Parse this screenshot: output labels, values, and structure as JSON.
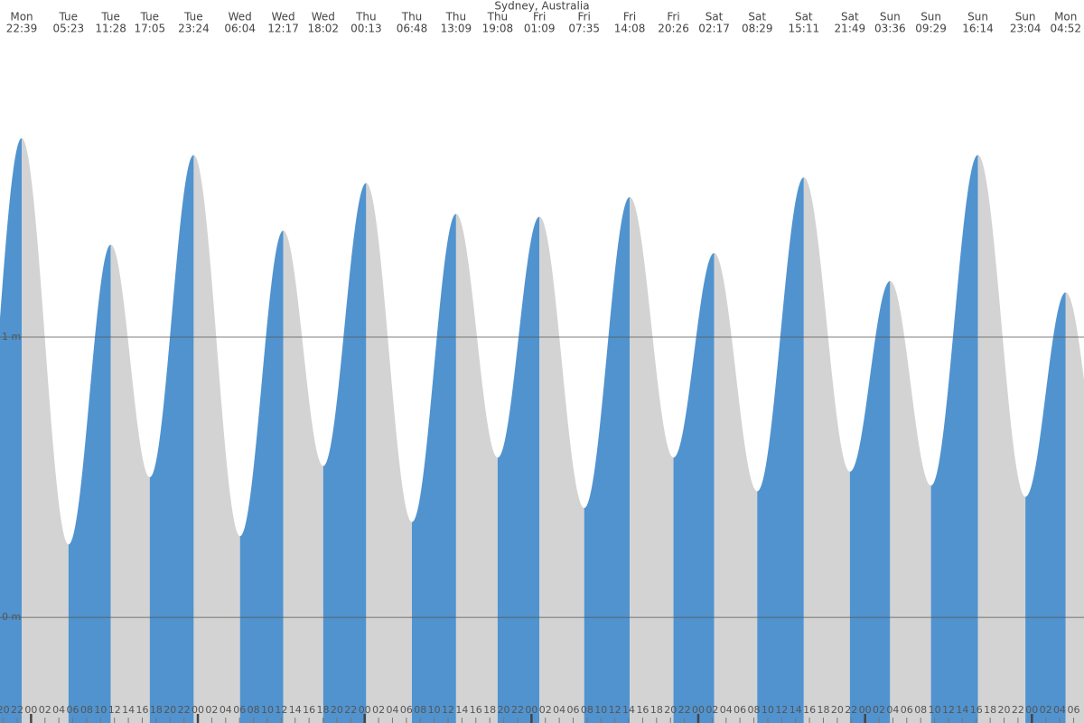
{
  "chart_data": {
    "type": "tide",
    "title": "Sydney, Australia",
    "days": [
      "Mon",
      "Tue",
      "Tue",
      "Tue",
      "Tue",
      "Wed",
      "Wed",
      "Wed",
      "Thu",
      "Thu",
      "Thu",
      "Thu",
      "Fri",
      "Fri",
      "Fri",
      "Fri",
      "Sat",
      "Sat",
      "Sat",
      "Sat",
      "Sun",
      "Sun",
      "Sun",
      "Sun",
      "Mon"
    ],
    "times": [
      "22:39",
      "05:23",
      "11:28",
      "17:05",
      "23:24",
      "06:04",
      "12:17",
      "18:02",
      "00:13",
      "06:48",
      "13:09",
      "19:08",
      "01:09",
      "07:35",
      "14:08",
      "20:26",
      "02:17",
      "08:29",
      "15:11",
      "21:49",
      "03:36",
      "09:29",
      "16:14",
      "23:04",
      "04:52"
    ],
    "values": [
      1.71,
      0.26,
      1.33,
      0.5,
      1.65,
      0.29,
      1.38,
      0.54,
      1.55,
      0.34,
      1.44,
      0.57,
      1.43,
      0.39,
      1.5,
      0.57,
      1.3,
      0.45,
      1.57,
      0.52,
      1.2,
      0.47,
      1.65,
      0.43,
      1.16
    ],
    "rising_color": "#5093cf",
    "falling_color": "#d3d3d3",
    "ylim": [
      -0.377,
      2.203
    ],
    "yticks": [
      {
        "value": 0,
        "label": "0 m"
      },
      {
        "value": 1,
        "label": "1 m"
      }
    ],
    "xlim": [
      19.53,
      175.5
    ],
    "xticks": [
      20,
      22,
      {
        "value": 24,
        "label": "00"
      },
      {
        "value": 26,
        "label": "02"
      },
      {
        "value": 28,
        "label": "04"
      },
      {
        "value": 30,
        "label": "06"
      },
      {
        "value": 32,
        "label": "08"
      },
      {
        "value": 34,
        "label": "10"
      },
      {
        "value": 36,
        "label": "12"
      },
      {
        "value": 38,
        "label": "14"
      },
      {
        "value": 40,
        "label": "16"
      },
      {
        "value": 42,
        "label": "18"
      },
      {
        "value": 44,
        "label": "20"
      },
      {
        "value": 46,
        "label": "22"
      },
      {
        "value": 48,
        "label": "00"
      },
      {
        "value": 50,
        "label": "02"
      },
      {
        "value": 52,
        "label": "04"
      },
      {
        "value": 54,
        "label": "06"
      },
      {
        "value": 56,
        "label": "08"
      },
      {
        "value": 58,
        "label": "10"
      },
      {
        "value": 60,
        "label": "12"
      },
      {
        "value": 62,
        "label": "14"
      },
      {
        "value": 64,
        "label": "16"
      },
      {
        "value": 66,
        "label": "18"
      },
      {
        "value": 68,
        "label": "20"
      },
      {
        "value": 70,
        "label": "22"
      },
      {
        "value": 72,
        "label": "00"
      },
      {
        "value": 74,
        "label": "02"
      },
      {
        "value": 76,
        "label": "04"
      },
      {
        "value": 78,
        "label": "06"
      },
      {
        "value": 80,
        "label": "08"
      },
      {
        "value": 82,
        "label": "10"
      },
      {
        "value": 84,
        "label": "12"
      },
      {
        "value": 86,
        "label": "14"
      },
      {
        "value": 88,
        "label": "16"
      },
      {
        "value": 90,
        "label": "18"
      },
      {
        "value": 92,
        "label": "20"
      },
      {
        "value": 94,
        "label": "22"
      },
      {
        "value": 96,
        "label": "00"
      },
      {
        "value": 98,
        "label": "02"
      },
      {
        "value": 100,
        "label": "04"
      },
      {
        "value": 102,
        "label": "06"
      },
      {
        "value": 104,
        "label": "08"
      },
      {
        "value": 106,
        "label": "10"
      },
      {
        "value": 108,
        "label": "12"
      },
      {
        "value": 110,
        "label": "14"
      },
      {
        "value": 112,
        "label": "16"
      },
      {
        "value": 114,
        "label": "18"
      },
      {
        "value": 116,
        "label": "20"
      },
      {
        "value": 118,
        "label": "22"
      },
      {
        "value": 120,
        "label": "00"
      },
      {
        "value": 122,
        "label": "02"
      },
      {
        "value": 124,
        "label": "04"
      },
      {
        "value": 126,
        "label": "06"
      },
      {
        "value": 128,
        "label": "08"
      },
      {
        "value": 130,
        "label": "10"
      },
      {
        "value": 132,
        "label": "12"
      },
      {
        "value": 134,
        "label": "14"
      },
      {
        "value": 136,
        "label": "16"
      },
      {
        "value": 138,
        "label": "18"
      },
      {
        "value": 140,
        "label": "20"
      },
      {
        "value": 142,
        "label": "22"
      },
      {
        "value": 144,
        "label": "00"
      },
      {
        "value": 146,
        "label": "02"
      },
      {
        "value": 148,
        "label": "04"
      },
      {
        "value": 150,
        "label": "06"
      },
      {
        "value": 152,
        "label": "08"
      },
      {
        "value": 154,
        "label": "10"
      },
      {
        "value": 156,
        "label": "12"
      },
      {
        "value": 158,
        "label": "14"
      },
      {
        "value": 160,
        "label": "16"
      },
      {
        "value": 162,
        "label": "18"
      },
      {
        "value": 164,
        "label": "20"
      },
      {
        "value": 166,
        "label": "22"
      },
      {
        "value": 168,
        "label": "00"
      },
      {
        "value": 170,
        "label": "02"
      },
      {
        "value": 172,
        "label": "04"
      },
      {
        "value": 174,
        "label": "06"
      }
    ]
  }
}
